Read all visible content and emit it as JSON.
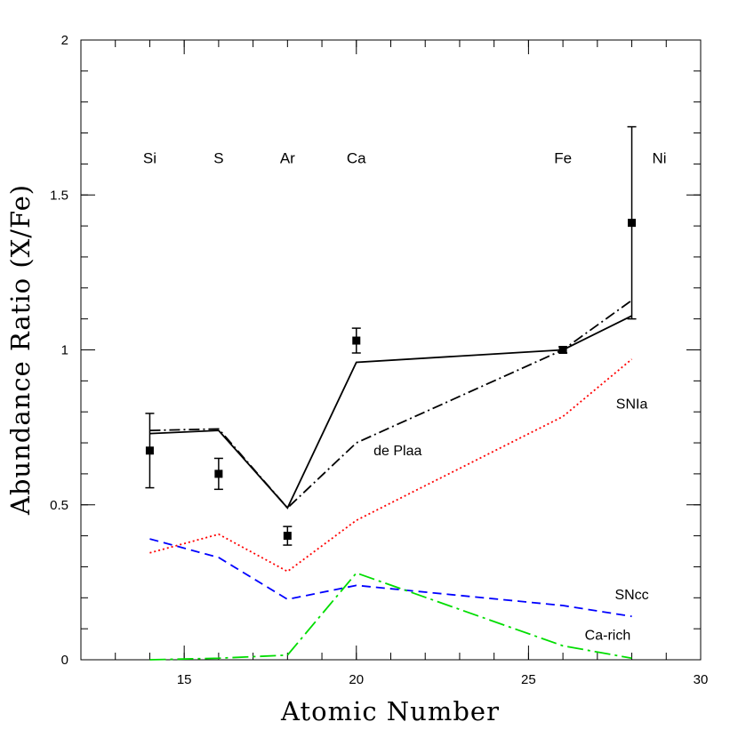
{
  "chart_data": {
    "type": "line",
    "xlabel": "Atomic Number",
    "ylabel": "Abundance Ratio (X/Fe)",
    "xlim": [
      12,
      30
    ],
    "ylim": [
      0,
      2
    ],
    "x_ticks": [
      15,
      20,
      25,
      30
    ],
    "x_tick_labels": [
      "15",
      "20",
      "25",
      "30"
    ],
    "y_ticks": [
      0,
      0.5,
      1,
      1.5,
      2
    ],
    "y_tick_labels": [
      "0",
      "0.5",
      "1",
      "1.5",
      "2"
    ],
    "grid": false,
    "element_labels": [
      {
        "text": "Si",
        "x": 14,
        "y": 1.62
      },
      {
        "text": "S",
        "x": 16,
        "y": 1.62
      },
      {
        "text": "Ar",
        "x": 18,
        "y": 1.62
      },
      {
        "text": "Ca",
        "x": 20,
        "y": 1.62
      },
      {
        "text": "Fe",
        "x": 26,
        "y": 1.62
      },
      {
        "text": "Ni",
        "x": 28.8,
        "y": 1.62
      }
    ],
    "observed": {
      "x": [
        14,
        16,
        18,
        20,
        26,
        28
      ],
      "y": [
        0.675,
        0.6,
        0.4,
        1.03,
        1.0,
        1.41
      ],
      "err_low": [
        0.12,
        0.05,
        0.03,
        0.04,
        0.01,
        0.31
      ],
      "err_high": [
        0.12,
        0.05,
        0.03,
        0.04,
        0.01,
        0.31
      ]
    },
    "series": [
      {
        "x": [
          14,
          16,
          18,
          20,
          26,
          28
        ],
        "values": [
          0.73,
          0.74,
          0.49,
          0.96,
          1.0,
          1.11
        ],
        "color": "#000000",
        "style": "solid"
      },
      {
        "name": "de Plaa",
        "x": [
          14,
          16,
          18,
          20,
          26,
          28
        ],
        "values": [
          0.74,
          0.745,
          0.49,
          0.7,
          1.0,
          1.16
        ],
        "color": "#000000",
        "style": "dashdot"
      },
      {
        "name": "SNIa",
        "x": [
          14,
          16,
          18,
          20,
          26,
          28
        ],
        "values": [
          0.345,
          0.405,
          0.285,
          0.45,
          0.785,
          0.97
        ],
        "color": "#ff0000",
        "style": "dotted"
      },
      {
        "name": "SNcc",
        "x": [
          14,
          16,
          18,
          20,
          26,
          28
        ],
        "values": [
          0.39,
          0.33,
          0.195,
          0.24,
          0.175,
          0.14
        ],
        "color": "#0000ff",
        "style": "dashed"
      },
      {
        "name": "Ca-rich",
        "x": [
          14,
          16,
          18,
          20,
          26,
          28
        ],
        "values": [
          0.0,
          0.005,
          0.015,
          0.28,
          0.045,
          0.005
        ],
        "color": "#00dd00",
        "style": "longdashdot"
      }
    ],
    "annotations": [
      {
        "text": "de Plaa",
        "x": 21.2,
        "y": 0.66
      },
      {
        "text": "SNIa",
        "x": 28.0,
        "y": 0.81
      },
      {
        "text": "SNcc",
        "x": 28.0,
        "y": 0.195
      },
      {
        "text": "Ca-rich",
        "x": 27.3,
        "y": 0.065
      }
    ]
  }
}
